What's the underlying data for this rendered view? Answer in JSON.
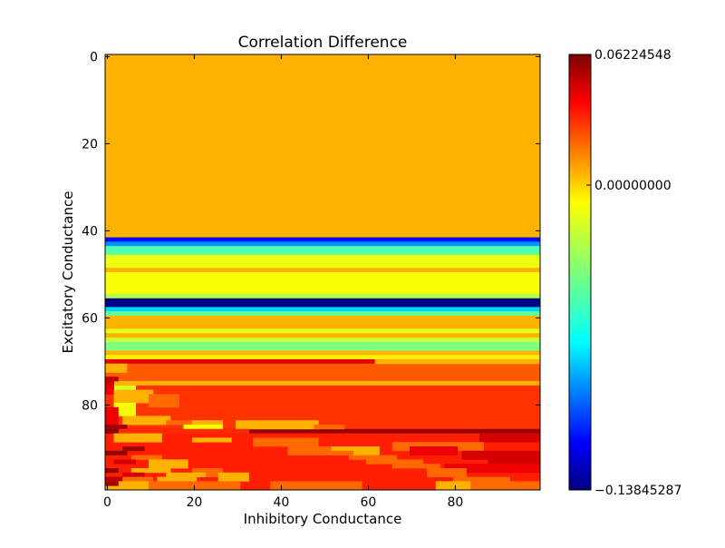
{
  "chart_data": {
    "type": "heatmap",
    "title": "Correlation Difference",
    "xlabel": "Inhibitory Conductance",
    "ylabel": "Excitatory Conductance",
    "grid": false,
    "colormap": "jet",
    "x_range": [
      0,
      99
    ],
    "y_range": [
      0,
      99
    ],
    "y_inverted": true,
    "x_ticks": [
      0,
      20,
      40,
      60,
      80
    ],
    "y_ticks": [
      0,
      20,
      40,
      60,
      80
    ],
    "x_tick_labels": [
      "0",
      "20",
      "40",
      "60",
      "80"
    ],
    "y_tick_labels": [
      "0",
      "20",
      "40",
      "60",
      "80"
    ],
    "colorbar": {
      "vmin": -0.13845287,
      "vmax": 0.06224548,
      "ticks": [
        0.06224548,
        0.0,
        -0.13845287
      ],
      "tick_labels": [
        "0.06224548",
        "0.00000000",
        "−0.13845287"
      ],
      "colormap": "jet"
    },
    "row_bands": [
      {
        "rows": [
          0,
          41
        ],
        "value": 0.0
      },
      {
        "rows": [
          42,
          42
        ],
        "value": -0.112
      },
      {
        "rows": [
          43,
          43
        ],
        "value": -0.085
      },
      {
        "rows": [
          44,
          45
        ],
        "value": -0.048
      },
      {
        "rows": [
          46,
          48
        ],
        "value": -0.018
      },
      {
        "rows": [
          49,
          49
        ],
        "value": 0.0
      },
      {
        "rows": [
          50,
          54
        ],
        "value": -0.016
      },
      {
        "rows": [
          55,
          55
        ],
        "value": -0.03
      },
      {
        "rows": [
          56,
          57
        ],
        "value": -0.138
      },
      {
        "rows": [
          58,
          58
        ],
        "value": -0.072
      },
      {
        "rows": [
          59,
          59
        ],
        "value": -0.045
      },
      {
        "rows": [
          60,
          62
        ],
        "value": 0.0
      },
      {
        "rows": [
          63,
          63
        ],
        "value": -0.02
      },
      {
        "rows": [
          64,
          64
        ],
        "value": 0.0
      },
      {
        "rows": [
          65,
          65
        ],
        "value": -0.025
      },
      {
        "rows": [
          66,
          67
        ],
        "value": -0.04
      },
      {
        "rows": [
          68,
          68
        ],
        "value": 0.0
      },
      {
        "rows": [
          69,
          69
        ],
        "value": -0.012
      },
      {
        "rows": [
          70,
          70
        ],
        "value": 0.041
      },
      {
        "rows": [
          71,
          74
        ],
        "value": 0.018
      },
      {
        "rows": [
          75,
          75
        ],
        "value": 0.0
      },
      {
        "rows": [
          76,
          85
        ],
        "value": 0.026
      },
      {
        "rows": [
          86,
          86
        ],
        "value": 0.058
      },
      {
        "rows": [
          87,
          99
        ],
        "value": 0.03
      }
    ],
    "patches": [
      {
        "rows": [
          70,
          70
        ],
        "cols": [
          62,
          99
        ],
        "value": 0.0
      },
      {
        "rows": [
          71,
          72
        ],
        "cols": [
          0,
          4
        ],
        "value": 0.0
      },
      {
        "rows": [
          74,
          74
        ],
        "cols": [
          0,
          2
        ],
        "value": 0.05
      },
      {
        "rows": [
          75,
          75
        ],
        "cols": [
          0,
          1
        ],
        "value": 0.045
      },
      {
        "rows": [
          76,
          76
        ],
        "cols": [
          2,
          6
        ],
        "value": -0.022
      },
      {
        "rows": [
          76,
          77
        ],
        "cols": [
          0,
          1
        ],
        "value": 0.04
      },
      {
        "rows": [
          77,
          79
        ],
        "cols": [
          2,
          10
        ],
        "value": 0.0
      },
      {
        "rows": [
          78,
          80
        ],
        "cols": [
          10,
          16
        ],
        "value": 0.015
      },
      {
        "rows": [
          80,
          82
        ],
        "cols": [
          2,
          6
        ],
        "value": -0.016
      },
      {
        "rows": [
          81,
          84
        ],
        "cols": [
          0,
          2
        ],
        "value": 0.04
      },
      {
        "rows": [
          83,
          84
        ],
        "cols": [
          4,
          14
        ],
        "value": 0.0
      },
      {
        "rows": [
          84,
          84
        ],
        "cols": [
          14,
          20
        ],
        "value": 0.015
      },
      {
        "rows": [
          84,
          84
        ],
        "cols": [
          20,
          26
        ],
        "value": 0.0
      },
      {
        "rows": [
          84,
          85
        ],
        "cols": [
          30,
          48
        ],
        "value": 0.0
      },
      {
        "rows": [
          85,
          85
        ],
        "cols": [
          0,
          4
        ],
        "value": 0.055
      },
      {
        "rows": [
          85,
          85
        ],
        "cols": [
          18,
          26
        ],
        "value": -0.015
      },
      {
        "rows": [
          85,
          85
        ],
        "cols": [
          48,
          54
        ],
        "value": 0.015
      },
      {
        "rows": [
          86,
          86
        ],
        "cols": [
          0,
          32
        ],
        "value": 0.028
      },
      {
        "rows": [
          86,
          86
        ],
        "cols": [
          0,
          2
        ],
        "value": 0.06
      },
      {
        "rows": [
          87,
          88
        ],
        "cols": [
          2,
          12
        ],
        "value": 0.0
      },
      {
        "rows": [
          88,
          88
        ],
        "cols": [
          20,
          28
        ],
        "value": 0.0
      },
      {
        "rows": [
          88,
          89
        ],
        "cols": [
          34,
          48
        ],
        "value": 0.015
      },
      {
        "rows": [
          87,
          88
        ],
        "cols": [
          86,
          99
        ],
        "value": 0.045
      },
      {
        "rows": [
          89,
          90
        ],
        "cols": [
          66,
          86
        ],
        "value": 0.015
      },
      {
        "rows": [
          90,
          90
        ],
        "cols": [
          4,
          8
        ],
        "value": 0.055
      },
      {
        "rows": [
          90,
          90
        ],
        "cols": [
          42,
          52
        ],
        "value": 0.015
      },
      {
        "rows": [
          90,
          91
        ],
        "cols": [
          52,
          62
        ],
        "value": 0.0
      },
      {
        "rows": [
          90,
          91
        ],
        "cols": [
          70,
          80
        ],
        "value": 0.04
      },
      {
        "rows": [
          91,
          91
        ],
        "cols": [
          0,
          4
        ],
        "value": 0.058
      },
      {
        "rows": [
          91,
          91
        ],
        "cols": [
          42,
          56
        ],
        "value": 0.015
      },
      {
        "rows": [
          91,
          92
        ],
        "cols": [
          82,
          99
        ],
        "value": 0.045
      },
      {
        "rows": [
          92,
          92
        ],
        "cols": [
          6,
          12
        ],
        "value": 0.015
      },
      {
        "rows": [
          92,
          92
        ],
        "cols": [
          56,
          66
        ],
        "value": 0.015
      },
      {
        "rows": [
          92,
          93
        ],
        "cols": [
          88,
          99
        ],
        "value": 0.045
      },
      {
        "rows": [
          93,
          93
        ],
        "cols": [
          2,
          6
        ],
        "value": 0.045
      },
      {
        "rows": [
          93,
          94
        ],
        "cols": [
          10,
          18
        ],
        "value": 0.0
      },
      {
        "rows": [
          93,
          93
        ],
        "cols": [
          60,
          72
        ],
        "value": 0.015
      },
      {
        "rows": [
          94,
          94
        ],
        "cols": [
          66,
          76
        ],
        "value": 0.015
      },
      {
        "rows": [
          94,
          95
        ],
        "cols": [
          78,
          99
        ],
        "value": 0.04
      },
      {
        "rows": [
          95,
          95
        ],
        "cols": [
          0,
          2
        ],
        "value": 0.058
      },
      {
        "rows": [
          95,
          95
        ],
        "cols": [
          6,
          14
        ],
        "value": 0.0
      },
      {
        "rows": [
          95,
          96
        ],
        "cols": [
          20,
          26
        ],
        "value": 0.015
      },
      {
        "rows": [
          95,
          96
        ],
        "cols": [
          74,
          82
        ],
        "value": 0.015
      },
      {
        "rows": [
          96,
          96
        ],
        "cols": [
          4,
          8
        ],
        "value": 0.045
      },
      {
        "rows": [
          96,
          96
        ],
        "cols": [
          14,
          22
        ],
        "value": 0.0
      },
      {
        "rows": [
          96,
          97
        ],
        "cols": [
          26,
          32
        ],
        "value": 0.0
      },
      {
        "rows": [
          97,
          97
        ],
        "cols": [
          0,
          4
        ],
        "value": 0.05
      },
      {
        "rows": [
          97,
          97
        ],
        "cols": [
          4,
          10
        ],
        "value": 0.015
      },
      {
        "rows": [
          97,
          97
        ],
        "cols": [
          12,
          20
        ],
        "value": 0.0
      },
      {
        "rows": [
          97,
          97
        ],
        "cols": [
          80,
          92
        ],
        "value": 0.015
      },
      {
        "rows": [
          98,
          99
        ],
        "cols": [
          0,
          10
        ],
        "value": 0.0
      },
      {
        "rows": [
          98,
          99
        ],
        "cols": [
          10,
          30
        ],
        "value": 0.015
      },
      {
        "rows": [
          98,
          99
        ],
        "cols": [
          38,
          58
        ],
        "value": 0.015
      },
      {
        "rows": [
          98,
          99
        ],
        "cols": [
          76,
          84
        ],
        "value": 0.0
      },
      {
        "rows": [
          98,
          99
        ],
        "cols": [
          84,
          99
        ],
        "value": 0.015
      },
      {
        "rows": [
          98,
          98
        ],
        "cols": [
          0,
          2
        ],
        "value": 0.055
      }
    ]
  }
}
